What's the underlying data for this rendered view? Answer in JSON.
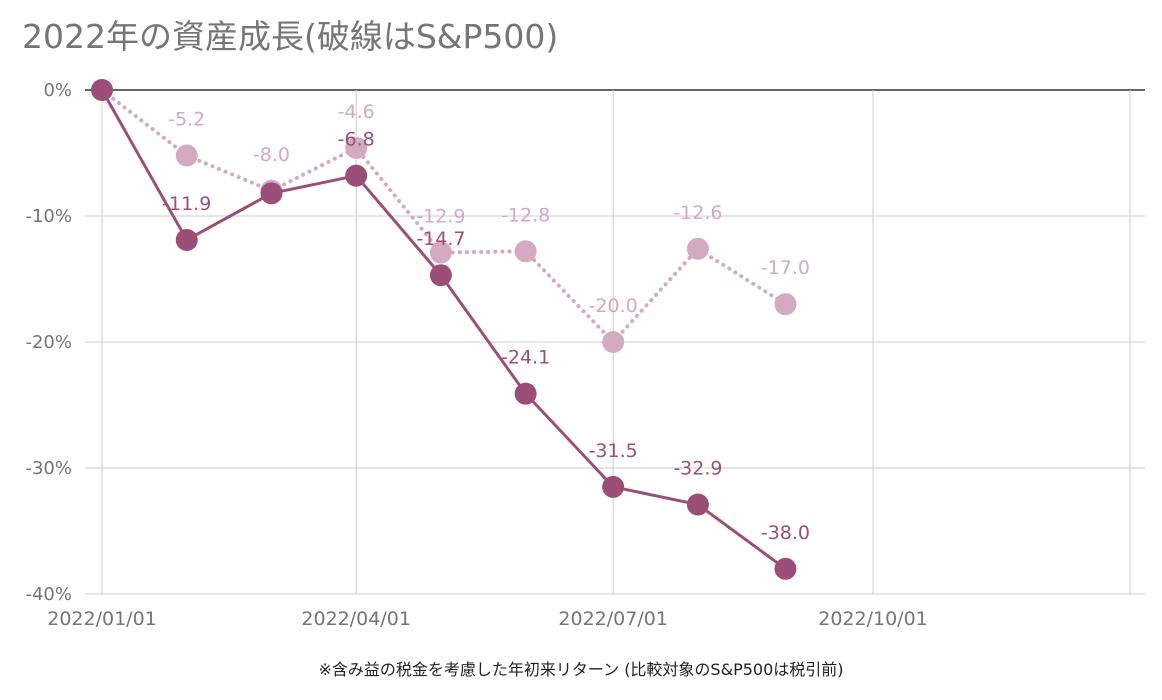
{
  "title": "2022年の資産成長(破線はS&P500)",
  "note": "※含み益の税金を考慮した年初来リターン (比較対象のS&P500は税引前)",
  "chart_data": {
    "type": "line",
    "title": "2022年の資産成長(破線はS&P500)",
    "x_ticks": [
      "2022/01/01",
      "2022/04/01",
      "2022/07/01",
      "2022/10/01"
    ],
    "x_range": [
      "2022-01-01",
      "2022-12-31"
    ],
    "y_ticks": [
      "0%",
      "-10%",
      "-20%",
      "-30%",
      "-40%"
    ],
    "ylim": [
      -40,
      0
    ],
    "grid": true,
    "series": [
      {
        "style": "solid",
        "color": "#9b4f78",
        "points": [
          {
            "x": "2022-01-01",
            "y": 0,
            "label": ""
          },
          {
            "x": "2022-01-31",
            "y": -11.9,
            "label": "-11.9"
          },
          {
            "x": "2022-03-02",
            "y": -8.2,
            "label": ""
          },
          {
            "x": "2022-04-01",
            "y": -6.8,
            "label": "-6.8"
          },
          {
            "x": "2022-05-01",
            "y": -14.7,
            "label": "-14.7"
          },
          {
            "x": "2022-05-31",
            "y": -24.1,
            "label": "-24.1"
          },
          {
            "x": "2022-07-01",
            "y": -31.5,
            "label": "-31.5"
          },
          {
            "x": "2022-07-31",
            "y": -32.9,
            "label": "-32.9"
          },
          {
            "x": "2022-08-31",
            "y": -38.0,
            "label": "-38.0"
          }
        ]
      },
      {
        "name": "S&P500",
        "style": "dotted",
        "color": "#d4a9c2",
        "points": [
          {
            "x": "2022-01-01",
            "y": 0,
            "label": ""
          },
          {
            "x": "2022-01-31",
            "y": -5.2,
            "label": "-5.2"
          },
          {
            "x": "2022-03-02",
            "y": -8.0,
            "label": "-8.0"
          },
          {
            "x": "2022-04-01",
            "y": -4.6,
            "label": "-4.6"
          },
          {
            "x": "2022-05-01",
            "y": -12.9,
            "label": "-12.9"
          },
          {
            "x": "2022-05-31",
            "y": -12.8,
            "label": "-12.8"
          },
          {
            "x": "2022-07-01",
            "y": -20.0,
            "label": "-20.0"
          },
          {
            "x": "2022-07-31",
            "y": -12.6,
            "label": "-12.6"
          },
          {
            "x": "2022-08-31",
            "y": -17.0,
            "label": "-17.0"
          }
        ]
      }
    ]
  }
}
